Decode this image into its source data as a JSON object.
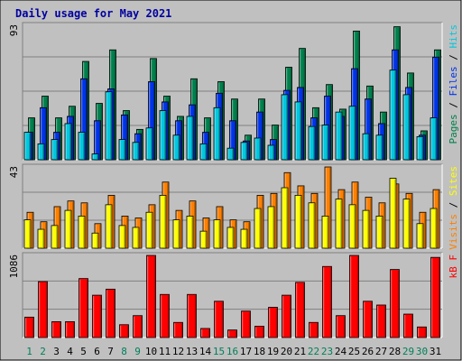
{
  "chart_data": [
    {
      "type": "bar",
      "title": "Daily usage for May 2021",
      "panel": "pages-files-hits",
      "ymax_label": "93",
      "legend": [
        "Pages",
        "Files",
        "Hits"
      ],
      "legend_sep": "/",
      "colors": {
        "pages": "#00c8e0",
        "files": "#0034e8",
        "hits": "#00804c"
      },
      "categories": [
        "1",
        "2",
        "3",
        "4",
        "5",
        "6",
        "7",
        "8",
        "9",
        "10",
        "11",
        "12",
        "13",
        "14",
        "15",
        "16",
        "17",
        "18",
        "19",
        "20",
        "21",
        "22",
        "23",
        "24",
        "25",
        "26",
        "27",
        "28",
        "29",
        "30",
        "31"
      ],
      "weekend_days": [
        "1",
        "2",
        "8",
        "9",
        "15",
        "16",
        "22",
        "23",
        "29",
        "30"
      ],
      "ylim": [
        0,
        93
      ],
      "series": [
        {
          "name": "Hits",
          "values": [
            29,
            44,
            29,
            37,
            68,
            39,
            76,
            34,
            21,
            70,
            44,
            30,
            56,
            29,
            54,
            42,
            17,
            42,
            24,
            64,
            77,
            36,
            52,
            35,
            89,
            51,
            33,
            92,
            60,
            20,
            76
          ]
        },
        {
          "name": "Files",
          "values": [
            19,
            36,
            19,
            30,
            56,
            27,
            49,
            31,
            18,
            54,
            40,
            27,
            38,
            19,
            46,
            27,
            13,
            33,
            14,
            48,
            50,
            29,
            44,
            30,
            63,
            42,
            25,
            76,
            50,
            17,
            71
          ]
        },
        {
          "name": "Pages",
          "values": [
            19,
            11,
            14,
            25,
            19,
            4,
            47,
            14,
            12,
            22,
            34,
            17,
            30,
            11,
            36,
            8,
            12,
            15,
            10,
            45,
            40,
            23,
            24,
            33,
            37,
            18,
            17,
            62,
            45,
            16,
            29
          ]
        }
      ]
    },
    {
      "type": "bar",
      "panel": "visits-sites",
      "ymax_label": "43",
      "legend": [
        "Visits",
        "Sites"
      ],
      "legend_sep": "/",
      "colors": {
        "visits": "#ffff00",
        "sites": "#ff8000"
      },
      "categories": [
        "1",
        "2",
        "3",
        "4",
        "5",
        "6",
        "7",
        "8",
        "9",
        "10",
        "11",
        "12",
        "13",
        "14",
        "15",
        "16",
        "17",
        "18",
        "19",
        "20",
        "21",
        "22",
        "23",
        "24",
        "25",
        "26",
        "27",
        "28",
        "29",
        "30",
        "31"
      ],
      "ylim": [
        0,
        43
      ],
      "series": [
        {
          "name": "Visits",
          "values": [
            15,
            10,
            12,
            20,
            17,
            8,
            23,
            12,
            11,
            19,
            28,
            15,
            17,
            9,
            15,
            11,
            10,
            21,
            22,
            32,
            28,
            24,
            17,
            26,
            23,
            20,
            17,
            37,
            26,
            13,
            21
          ]
        },
        {
          "name": "Sites",
          "values": [
            19,
            14,
            22,
            25,
            24,
            13,
            28,
            17,
            16,
            23,
            35,
            20,
            25,
            16,
            22,
            15,
            14,
            28,
            29,
            40,
            33,
            29,
            43,
            31,
            35,
            27,
            24,
            34,
            29,
            19,
            31
          ]
        }
      ]
    },
    {
      "type": "bar",
      "panel": "kbytes",
      "ymax_label": "1086",
      "legend": [
        "kB F"
      ],
      "legend_sep": "",
      "colors": {
        "kbytes": "#ff0000"
      },
      "categories": [
        "1",
        "2",
        "3",
        "4",
        "5",
        "6",
        "7",
        "8",
        "9",
        "10",
        "11",
        "12",
        "13",
        "14",
        "15",
        "16",
        "17",
        "18",
        "19",
        "20",
        "21",
        "22",
        "23",
        "24",
        "25",
        "26",
        "27",
        "28",
        "29",
        "30",
        "31"
      ],
      "weekend_days": [
        "1",
        "2",
        "8",
        "9",
        "15",
        "16",
        "22",
        "23",
        "29",
        "30"
      ],
      "ylim": [
        0,
        1086
      ],
      "series": [
        {
          "name": "kB F",
          "values": [
            270,
            740,
            210,
            210,
            780,
            560,
            640,
            170,
            290,
            1086,
            570,
            200,
            570,
            120,
            480,
            100,
            350,
            150,
            400,
            560,
            730,
            200,
            940,
            290,
            1086,
            480,
            430,
            900,
            310,
            140,
            1060
          ]
        }
      ]
    }
  ]
}
